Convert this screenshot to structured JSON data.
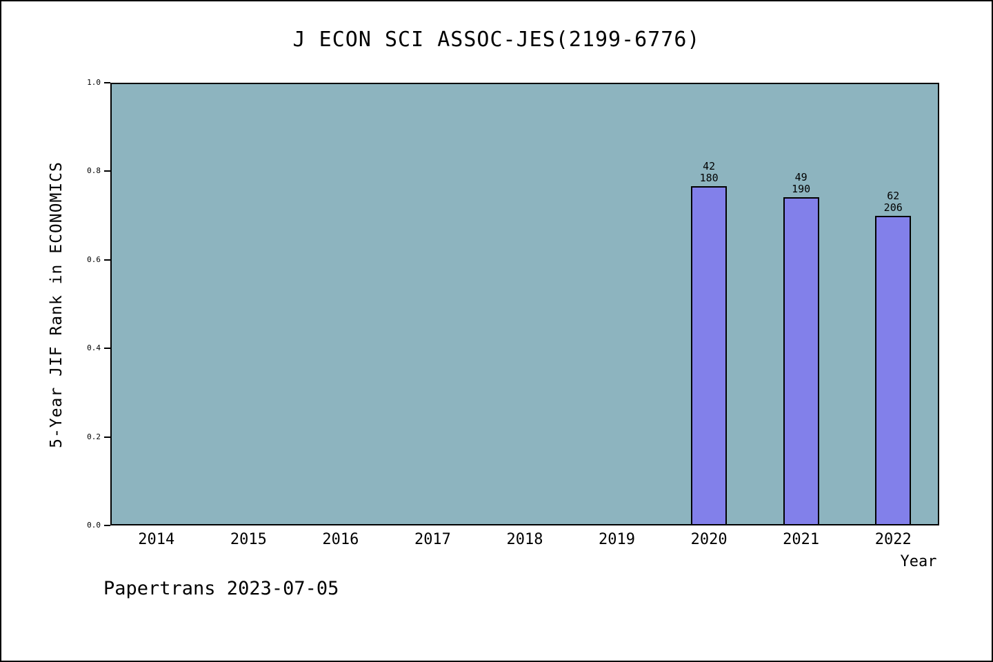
{
  "footer": "Papertrans 2023-07-05",
  "chart_data": {
    "type": "bar",
    "title": "J ECON SCI ASSOC-JES(2199-6776)",
    "xlabel": "Year",
    "ylabel": "5-Year JIF Rank in ECONOMICS",
    "ylim": [
      0.0,
      1.0
    ],
    "yticks": [
      0.0,
      0.2,
      0.4,
      0.6,
      0.8,
      1.0
    ],
    "categories": [
      2014,
      2015,
      2016,
      2017,
      2018,
      2019,
      2020,
      2021,
      2022
    ],
    "values": [
      null,
      null,
      null,
      null,
      null,
      null,
      0.767,
      0.742,
      0.699
    ],
    "bars": [
      {
        "year": 2020,
        "rank": 42,
        "total": 180,
        "value": 0.767
      },
      {
        "year": 2021,
        "rank": 49,
        "total": 190,
        "value": 0.742
      },
      {
        "year": 2022,
        "rank": 62,
        "total": 206,
        "value": 0.699
      }
    ],
    "grid": false,
    "legend": "none",
    "colors": {
      "plot_bg": "#8db4bf",
      "bar_fill": "#8280ea",
      "bar_border": "#000000",
      "axis": "#000000",
      "text": "#000000"
    }
  }
}
